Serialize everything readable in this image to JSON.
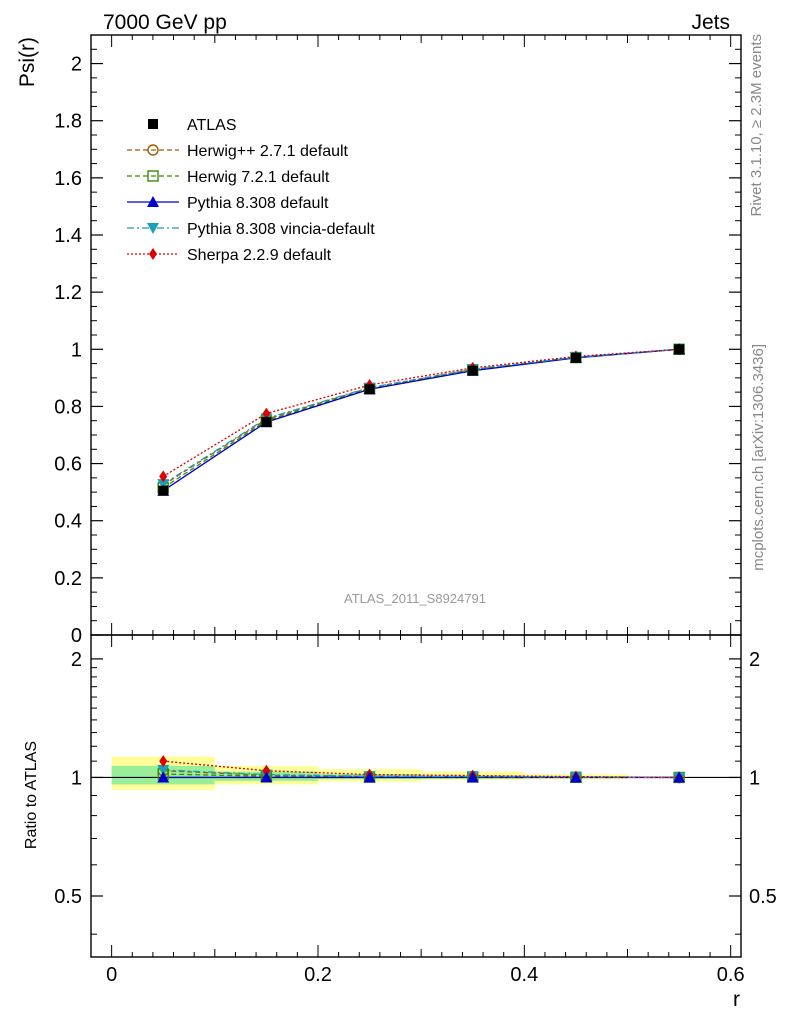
{
  "header": {
    "left": "7000 GeV pp",
    "right": "Jets"
  },
  "side_labels": {
    "rivet": "Rivet 3.1.10, ≥ 2.3M events",
    "mcplots": "mcplots.cern.ch [arXiv:1306.3436]"
  },
  "watermark": "ATLAS_2011_S8924791",
  "chart_data": [
    {
      "type": "line",
      "ylabel": "Psi(r)",
      "xlim": [
        -0.02,
        0.61
      ],
      "ylim": [
        0,
        2.1
      ],
      "y_ticks": [
        0,
        0.2,
        0.4,
        0.6,
        0.8,
        1,
        1.2,
        1.4,
        1.6,
        1.8,
        2
      ],
      "y_tick_labels": [
        "0",
        "0.2",
        "0.4",
        "0.6",
        "0.8",
        "1",
        "1.2",
        "1.4",
        "1.6",
        "1.8",
        "2"
      ],
      "x": [
        0.05,
        0.15,
        0.25,
        0.35,
        0.45,
        0.55
      ],
      "series": [
        {
          "name": "ATLAS",
          "style": "data",
          "marker": "square-filled",
          "color": "#000000",
          "values": [
            0.505,
            0.745,
            0.86,
            0.925,
            0.97,
            1.0
          ]
        },
        {
          "name": "Herwig++ 2.7.1 default",
          "style": "dashed",
          "marker": "circle-open",
          "color": "#a05a00",
          "values": [
            0.525,
            0.755,
            0.865,
            0.93,
            0.972,
            1.0
          ]
        },
        {
          "name": "Herwig 7.2.1 default",
          "style": "dashed",
          "marker": "square-open",
          "color": "#3a8c00",
          "values": [
            0.515,
            0.75,
            0.862,
            0.928,
            0.971,
            1.0
          ]
        },
        {
          "name": "Pythia 8.308 default",
          "style": "solid",
          "marker": "triangle-up",
          "color": "#0000cc",
          "values": [
            0.505,
            0.745,
            0.86,
            0.925,
            0.97,
            1.0
          ]
        },
        {
          "name": "Pythia 8.308 vincia-default",
          "style": "dashdot",
          "marker": "triangle-down",
          "color": "#1aa0b8",
          "values": [
            0.528,
            0.758,
            0.866,
            0.93,
            0.972,
            1.0
          ]
        },
        {
          "name": "Sherpa 2.2.9 default",
          "style": "dotted",
          "marker": "diamond",
          "color": "#dd0000",
          "values": [
            0.555,
            0.775,
            0.875,
            0.935,
            0.975,
            1.0
          ]
        }
      ],
      "legend_position": "top-left",
      "grid": false
    },
    {
      "type": "line",
      "xlabel": "r",
      "ylabel": "Ratio to ATLAS",
      "xlim": [
        -0.02,
        0.61
      ],
      "ylim": [
        0.35,
        2.3
      ],
      "y_scale": "log",
      "y_ticks": [
        0.5,
        1,
        2
      ],
      "y_tick_labels": [
        "0.5",
        "1",
        "2"
      ],
      "x_ticks": [
        0,
        0.2,
        0.4,
        0.6
      ],
      "x_tick_labels": [
        "0",
        "0.2",
        "0.4",
        "0.6"
      ],
      "x": [
        0.05,
        0.15,
        0.25,
        0.35,
        0.45,
        0.55
      ],
      "bands": [
        {
          "x_lo": 0.0,
          "x_hi": 0.1,
          "yellow": [
            0.93,
            1.13
          ],
          "green": [
            0.96,
            1.07
          ]
        },
        {
          "x_lo": 0.1,
          "x_hi": 0.2,
          "yellow": [
            0.96,
            1.07
          ],
          "green": [
            0.98,
            1.035
          ]
        },
        {
          "x_lo": 0.2,
          "x_hi": 0.3,
          "yellow": [
            0.975,
            1.05
          ],
          "green": [
            0.99,
            1.02
          ]
        },
        {
          "x_lo": 0.3,
          "x_hi": 0.4,
          "yellow": [
            0.985,
            1.035
          ],
          "green": [
            0.993,
            1.012
          ]
        },
        {
          "x_lo": 0.4,
          "x_hi": 0.5,
          "yellow": [
            0.99,
            1.02
          ],
          "green": [
            0.996,
            1.007
          ]
        }
      ],
      "series": [
        {
          "name": "Herwig++ 2.7.1 default",
          "values": [
            1.04,
            1.013,
            1.006,
            1.005,
            1.002,
            1.0
          ]
        },
        {
          "name": "Herwig 7.2.1 default",
          "values": [
            1.02,
            1.007,
            1.002,
            1.003,
            1.001,
            1.0
          ]
        },
        {
          "name": "Pythia 8.308 default",
          "values": [
            1.0,
            1.0,
            1.0,
            1.0,
            1.0,
            1.0
          ]
        },
        {
          "name": "Pythia 8.308 vincia-default",
          "values": [
            1.045,
            1.017,
            1.007,
            1.005,
            1.002,
            1.0
          ]
        },
        {
          "name": "Sherpa 2.2.9 default",
          "values": [
            1.1,
            1.04,
            1.017,
            1.011,
            1.005,
            1.0
          ]
        }
      ]
    }
  ]
}
